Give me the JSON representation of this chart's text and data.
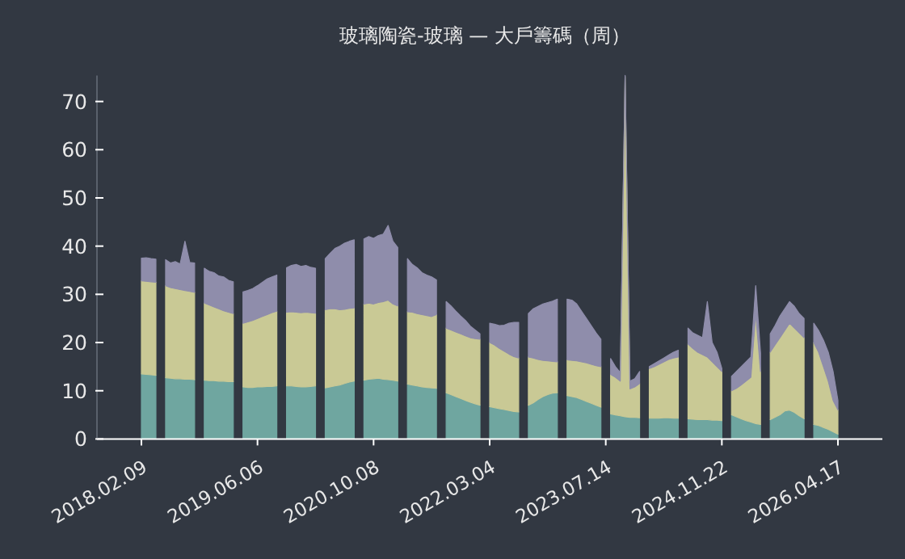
{
  "chart_data": {
    "type": "area",
    "stacked": true,
    "title": "玻璃陶瓷-玻璃 — 大戶籌碼（周）",
    "categories": [
      "2018.02.09",
      null,
      null,
      null,
      null,
      null,
      null,
      null,
      null,
      null,
      null,
      null,
      null,
      null,
      null,
      null,
      null,
      null,
      null,
      null,
      null,
      null,
      null,
      null,
      "2019.06.06",
      null,
      null,
      null,
      null,
      null,
      null,
      null,
      null,
      null,
      null,
      null,
      null,
      null,
      null,
      null,
      null,
      null,
      null,
      null,
      null,
      null,
      null,
      null,
      "2020.10.08",
      null,
      null,
      null,
      null,
      null,
      null,
      null,
      null,
      null,
      null,
      null,
      null,
      null,
      null,
      null,
      null,
      null,
      null,
      null,
      null,
      null,
      null,
      null,
      "2022.03.04",
      null,
      null,
      null,
      null,
      null,
      null,
      null,
      null,
      null,
      null,
      null,
      null,
      null,
      null,
      null,
      null,
      null,
      null,
      null,
      null,
      null,
      null,
      null,
      "2023.07.14",
      null,
      null,
      null,
      null,
      null,
      null,
      null,
      null,
      null,
      null,
      null,
      null,
      null,
      null,
      null,
      null,
      null,
      null,
      null,
      null,
      null,
      null,
      null,
      "2024.11.22",
      null,
      null,
      null,
      null,
      null,
      null,
      null,
      null,
      null,
      null,
      null,
      null,
      null,
      null,
      null,
      null,
      null,
      null,
      null,
      null,
      null,
      null,
      null,
      "2026.04.17"
    ],
    "ylim": [
      0,
      75.4
    ],
    "yticks": [
      0,
      10,
      20,
      30,
      40,
      50,
      60,
      70
    ],
    "series": [
      {
        "color": "#6fa6a0",
        "values": [
          13.5,
          13.4,
          13.3,
          13.2,
          null,
          12.7,
          12.6,
          12.5,
          12.5,
          12.4,
          12.4,
          12.3,
          null,
          12.2,
          12.1,
          12.1,
          12.0,
          12.0,
          11.9,
          11.9,
          null,
          10.8,
          10.7,
          10.7,
          10.8,
          10.8,
          10.9,
          10.9,
          11.0,
          null,
          11.0,
          11.0,
          10.9,
          10.8,
          10.8,
          10.9,
          11.0,
          null,
          10.6,
          10.8,
          11.0,
          11.2,
          11.5,
          11.8,
          12.0,
          null,
          12.2,
          12.4,
          12.5,
          12.6,
          12.4,
          12.3,
          12.2,
          12.0,
          null,
          11.4,
          11.2,
          11.0,
          10.8,
          10.7,
          10.6,
          10.5,
          null,
          9.6,
          9.2,
          8.8,
          8.4,
          8.0,
          7.6,
          7.3,
          7.0,
          null,
          6.7,
          6.5,
          6.3,
          6.1,
          5.9,
          5.7,
          5.6,
          null,
          7.0,
          7.5,
          8.2,
          8.8,
          9.2,
          9.5,
          9.6,
          null,
          9.0,
          8.8,
          8.6,
          8.2,
          7.8,
          7.4,
          7.0,
          6.6,
          null,
          5.2,
          5.0,
          4.8,
          4.6,
          4.5,
          4.5,
          4.4,
          null,
          4.3,
          4.3,
          4.3,
          4.4,
          4.4,
          4.3,
          4.3,
          null,
          4.2,
          4.1,
          4.0,
          4.0,
          4.0,
          3.9,
          3.9,
          3.8,
          null,
          5.0,
          4.6,
          4.2,
          3.8,
          3.5,
          3.2,
          3.0,
          null,
          4.0,
          4.5,
          5.0,
          5.8,
          6.0,
          5.5,
          4.8,
          4.2,
          null,
          3.0,
          2.8,
          2.4,
          2.0,
          1.5,
          1.0
        ]
      },
      {
        "color": "#c9c995",
        "values": [
          19.3,
          19.3,
          19.3,
          19.3,
          null,
          19.1,
          18.8,
          18.7,
          18.5,
          18.4,
          18.2,
          18.1,
          null,
          16.0,
          15.7,
          15.3,
          15.0,
          14.6,
          14.4,
          14.1,
          null,
          13.2,
          13.6,
          13.9,
          14.2,
          14.6,
          14.9,
          15.3,
          15.5,
          null,
          15.3,
          15.4,
          15.4,
          15.4,
          15.5,
          15.3,
          15.1,
          null,
          16.2,
          16.2,
          16.0,
          15.6,
          15.4,
          15.3,
          15.2,
          null,
          15.8,
          15.8,
          15.5,
          15.7,
          16.1,
          16.5,
          15.8,
          15.6,
          null,
          15.0,
          15.1,
          15.0,
          15.0,
          14.9,
          14.8,
          15.3,
          null,
          13.4,
          13.4,
          13.4,
          13.4,
          13.4,
          13.4,
          13.5,
          13.7,
          null,
          13.3,
          13.0,
          12.5,
          12.1,
          11.7,
          11.4,
          11.2,
          null,
          10.0,
          9.3,
          8.3,
          7.5,
          7.0,
          6.6,
          6.4,
          null,
          7.4,
          7.5,
          7.6,
          7.8,
          8.0,
          8.1,
          8.2,
          8.4,
          null,
          8.2,
          7.8,
          7.2,
          70.6,
          5.9,
          6.3,
          7.1,
          null,
          10.3,
          10.7,
          11.2,
          11.6,
          12.1,
          12.5,
          12.7,
          null,
          15.5,
          14.7,
          14.0,
          13.5,
          13.0,
          12.1,
          11.1,
          10.2,
          null,
          5.0,
          5.9,
          7.0,
          8.2,
          9.3,
          22.8,
          11.0,
          null,
          14.0,
          15.0,
          16.0,
          16.7,
          18.0,
          17.5,
          17.2,
          16.8,
          null,
          17.0,
          15.2,
          12.6,
          10.0,
          6.5,
          5.0
        ]
      },
      {
        "color": "#8f8dab",
        "values": [
          4.7,
          4.9,
          4.8,
          4.8,
          null,
          5.4,
          5.1,
          5.6,
          5.3,
          10.2,
          6.0,
          6.1,
          null,
          7.2,
          7.0,
          7.1,
          6.8,
          7.0,
          6.6,
          6.6,
          null,
          6.5,
          6.5,
          6.6,
          6.8,
          7.1,
          7.4,
          7.4,
          7.5,
          null,
          9.2,
          9.6,
          9.9,
          9.6,
          9.7,
          9.4,
          9.3,
          null,
          10.6,
          11.5,
          12.5,
          13.2,
          13.7,
          13.9,
          14.1,
          null,
          13.5,
          13.8,
          13.6,
          13.9,
          14.0,
          15.5,
          13.0,
          12.1,
          null,
          11.0,
          9.9,
          9.5,
          8.7,
          8.4,
          8.2,
          7.2,
          null,
          5.5,
          5.0,
          4.3,
          3.7,
          3.2,
          2.4,
          1.8,
          1.1,
          null,
          4.0,
          4.3,
          4.7,
          5.4,
          6.4,
          7.1,
          7.4,
          null,
          9.0,
          10.2,
          11.0,
          11.7,
          12.1,
          12.5,
          13.0,
          null,
          12.6,
          12.5,
          11.8,
          10.5,
          9.2,
          8.0,
          6.8,
          5.7,
          null,
          3.3,
          2.2,
          1.8,
          0.2,
          1.6,
          1.7,
          2.5,
          null,
          0.4,
          0.6,
          0.7,
          0.8,
          0.9,
          1.2,
          1.4,
          null,
          3.3,
          3.2,
          3.5,
          3.5,
          11.5,
          4.0,
          3.0,
          0.6,
          null,
          3.0,
          3.5,
          3.8,
          4.0,
          4.2,
          5.8,
          3.8,
          null,
          3.8,
          4.0,
          4.5,
          4.5,
          4.5,
          4.5,
          4.0,
          4.0,
          null,
          4.0,
          4.5,
          5.5,
          6.0,
          6.0,
          2.0
        ]
      }
    ]
  }
}
